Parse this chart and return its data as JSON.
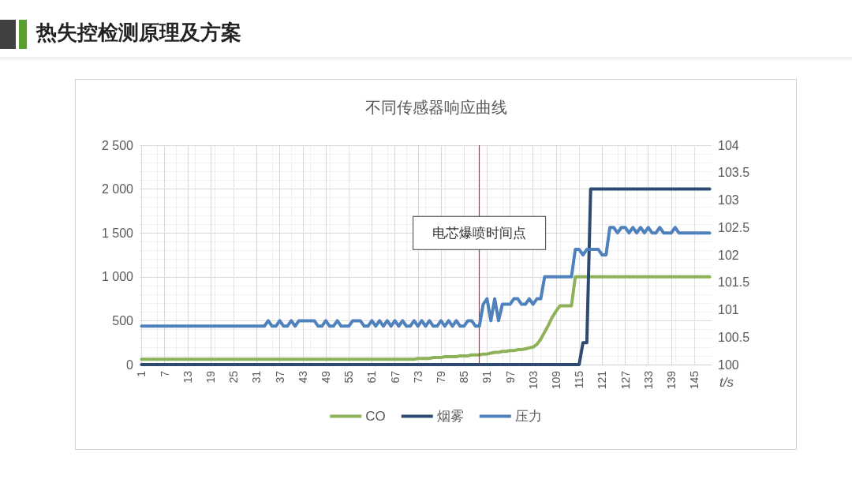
{
  "chart_data": {
    "type": "line",
    "title": "热失控检测原理及方案",
    "subtitle": "不同传感器响应曲线",
    "xlabel": "t/s",
    "x": [
      1,
      2,
      3,
      4,
      5,
      6,
      7,
      8,
      9,
      10,
      11,
      12,
      13,
      14,
      15,
      16,
      17,
      18,
      19,
      20,
      21,
      22,
      23,
      24,
      25,
      26,
      27,
      28,
      29,
      30,
      31,
      32,
      33,
      34,
      35,
      36,
      37,
      38,
      39,
      40,
      41,
      42,
      43,
      44,
      45,
      46,
      47,
      48,
      49,
      50,
      51,
      52,
      53,
      54,
      55,
      56,
      57,
      58,
      59,
      60,
      61,
      62,
      63,
      64,
      65,
      66,
      67,
      68,
      69,
      70,
      71,
      72,
      73,
      74,
      75,
      76,
      77,
      78,
      79,
      80,
      81,
      82,
      83,
      84,
      85,
      86,
      87,
      88,
      89,
      90,
      91,
      92,
      93,
      94,
      95,
      96,
      97,
      98,
      99,
      100,
      101,
      102,
      103,
      104,
      105,
      106,
      107,
      108,
      109,
      110,
      111,
      112,
      113,
      114,
      115,
      116,
      117,
      118,
      119,
      120,
      121,
      122,
      123,
      124,
      125,
      126,
      127,
      128,
      129,
      130,
      131,
      132,
      133,
      134,
      135,
      136,
      137,
      138,
      139,
      140,
      141,
      142,
      143,
      144,
      145,
      146,
      147,
      148,
      149
    ],
    "xlim": [
      0.5,
      149.5
    ],
    "xticks": [
      1,
      7,
      13,
      19,
      25,
      31,
      37,
      43,
      49,
      55,
      61,
      67,
      73,
      79,
      85,
      91,
      97,
      103,
      109,
      115,
      121,
      127,
      133,
      139,
      145
    ],
    "ylim": [
      0,
      2500
    ],
    "yticks": [
      0,
      500,
      {
        "value": 1000,
        "label": "1 000"
      },
      {
        "value": 1500,
        "label": "1 500"
      },
      {
        "value": 2000,
        "label": "2 000"
      },
      {
        "value": 2500,
        "label": "2 500"
      }
    ],
    "y2lim": [
      100,
      104
    ],
    "y2ticks": [
      100,
      100.5,
      101,
      101.5,
      102,
      102.5,
      103,
      103.5,
      104
    ],
    "grid": true,
    "legend": "bottom",
    "marker": "none",
    "line_style": "solid",
    "ref_lines": [
      {
        "axis": "x",
        "value": 89,
        "label": "电芯爆喷时间点",
        "color": "#e02020"
      }
    ],
    "series": [
      {
        "name": "CO",
        "color": "#8db25a",
        "values": [
          60,
          60,
          60,
          60,
          60,
          60,
          60,
          60,
          60,
          60,
          60,
          60,
          60,
          60,
          60,
          60,
          60,
          60,
          60,
          60,
          60,
          60,
          60,
          60,
          60,
          60,
          60,
          60,
          60,
          60,
          60,
          60,
          60,
          60,
          60,
          60,
          60,
          60,
          60,
          60,
          60,
          60,
          60,
          60,
          60,
          60,
          60,
          60,
          60,
          60,
          60,
          60,
          60,
          60,
          60,
          60,
          60,
          60,
          60,
          60,
          60,
          60,
          60,
          60,
          60,
          60,
          60,
          60,
          60,
          60,
          60,
          60,
          70,
          70,
          70,
          70,
          80,
          80,
          80,
          90,
          90,
          90,
          90,
          100,
          100,
          100,
          110,
          110,
          110,
          120,
          120,
          130,
          140,
          140,
          150,
          150,
          160,
          160,
          170,
          170,
          180,
          190,
          200,
          230,
          290,
          370,
          450,
          540,
          610,
          670,
          670,
          670,
          670,
          1000,
          1000,
          1000,
          1000,
          1000,
          1000,
          1000,
          1000,
          1000,
          1000,
          1000,
          1000,
          1000,
          1000,
          1000,
          1000,
          1000,
          1000,
          1000,
          1000,
          1000,
          1000,
          1000,
          1000,
          1000,
          1000,
          1000,
          1000,
          1000,
          1000,
          1000,
          1000,
          1000,
          1000,
          1000,
          1000
        ]
      },
      {
        "name": "烟雾",
        "color": "#2e4a70",
        "values": [
          0,
          0,
          0,
          0,
          0,
          0,
          0,
          0,
          0,
          0,
          0,
          0,
          0,
          0,
          0,
          0,
          0,
          0,
          0,
          0,
          0,
          0,
          0,
          0,
          0,
          0,
          0,
          0,
          0,
          0,
          0,
          0,
          0,
          0,
          0,
          0,
          0,
          0,
          0,
          0,
          0,
          0,
          0,
          0,
          0,
          0,
          0,
          0,
          0,
          0,
          0,
          0,
          0,
          0,
          0,
          0,
          0,
          0,
          0,
          0,
          0,
          0,
          0,
          0,
          0,
          0,
          0,
          0,
          0,
          0,
          0,
          0,
          0,
          0,
          0,
          0,
          0,
          0,
          0,
          0,
          0,
          0,
          0,
          0,
          0,
          0,
          0,
          0,
          0,
          0,
          0,
          0,
          0,
          0,
          0,
          0,
          0,
          0,
          0,
          0,
          0,
          0,
          0,
          0,
          0,
          0,
          0,
          0,
          0,
          0,
          0,
          0,
          0,
          0,
          0,
          250,
          250,
          2000,
          2000,
          2000,
          2000,
          2000,
          2000,
          2000,
          2000,
          2000,
          2000,
          2000,
          2000,
          2000,
          2000,
          2000,
          2000,
          2000,
          2000,
          2000,
          2000,
          2000,
          2000,
          2000,
          2000,
          2000,
          2000,
          2000,
          2000,
          2000,
          2000,
          2000,
          2000
        ]
      },
      {
        "name": "压力",
        "color": "#4f81bd",
        "axis": "y2",
        "values": [
          100.7,
          100.7,
          100.7,
          100.7,
          100.7,
          100.7,
          100.7,
          100.7,
          100.7,
          100.7,
          100.7,
          100.7,
          100.7,
          100.7,
          100.7,
          100.7,
          100.7,
          100.7,
          100.7,
          100.7,
          100.7,
          100.7,
          100.7,
          100.7,
          100.7,
          100.7,
          100.7,
          100.7,
          100.7,
          100.7,
          100.7,
          100.7,
          100.7,
          100.8,
          100.7,
          100.7,
          100.8,
          100.7,
          100.7,
          100.8,
          100.7,
          100.8,
          100.8,
          100.8,
          100.8,
          100.8,
          100.7,
          100.7,
          100.8,
          100.7,
          100.7,
          100.8,
          100.7,
          100.7,
          100.7,
          100.8,
          100.8,
          100.8,
          100.7,
          100.7,
          100.8,
          100.7,
          100.8,
          100.7,
          100.8,
          100.7,
          100.8,
          100.7,
          100.8,
          100.7,
          100.7,
          100.8,
          100.7,
          100.8,
          100.7,
          100.8,
          100.7,
          100.7,
          100.8,
          100.7,
          100.8,
          100.7,
          100.8,
          100.7,
          100.7,
          100.8,
          100.8,
          100.7,
          100.7,
          101.1,
          101.2,
          100.8,
          101.2,
          100.8,
          101.1,
          101.1,
          101.1,
          101.2,
          101.2,
          101.1,
          101.1,
          101.2,
          101.1,
          101.2,
          101.2,
          101.6,
          101.6,
          101.6,
          101.6,
          101.6,
          101.6,
          101.6,
          101.6,
          102.1,
          102.1,
          102.0,
          102.1,
          102.1,
          102.1,
          102.1,
          102.0,
          102.0,
          102.5,
          102.5,
          102.4,
          102.5,
          102.5,
          102.4,
          102.5,
          102.4,
          102.5,
          102.4,
          102.5,
          102.4,
          102.4,
          102.5,
          102.4,
          102.4,
          102.4,
          102.5,
          102.4,
          102.4,
          102.4,
          102.4,
          102.4,
          102.4,
          102.4,
          102.4,
          102.4
        ]
      }
    ]
  }
}
